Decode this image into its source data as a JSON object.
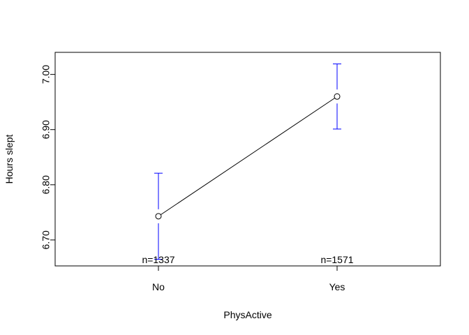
{
  "chart_data": {
    "type": "line",
    "title": "",
    "xlabel": "PhysActive",
    "ylabel": "Hours slept",
    "categories": [
      "No",
      "Yes"
    ],
    "series": [
      {
        "values": [
          6.743,
          6.96
        ],
        "ci_lower": [
          6.665,
          6.901
        ],
        "ci_upper": [
          6.821,
          7.019
        ],
        "n_labels": [
          "n=1337",
          "n=1571"
        ]
      }
    ],
    "ylim": [
      6.653,
      7.04
    ],
    "yticks": [
      6.7,
      6.8,
      6.9,
      7.0
    ],
    "ytick_labels": [
      "6.70",
      "6.80",
      "6.90",
      "7.00"
    ],
    "grid": false,
    "colors": {
      "line": "#000000",
      "error_bars": "#0000ff",
      "points": "#000000"
    }
  }
}
